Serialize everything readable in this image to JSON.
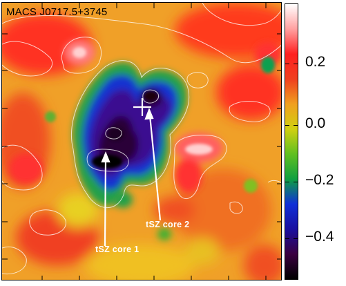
{
  "title": "MACS J0717.5+3745",
  "annotations": {
    "core1": "tSZ core 1",
    "core2": "tSZ core 2"
  },
  "colorbar": {
    "labels": [
      "0.2",
      "0.0",
      "−0.2",
      "−0.4"
    ],
    "range": [
      -0.5,
      0.4
    ],
    "colors": [
      "#000000",
      "#3a0040",
      "#1a10a0",
      "#1030d8",
      "#10a040",
      "#60c020",
      "#d0d010",
      "#f0a020",
      "#f04020",
      "#ff2020",
      "#ffa0a0",
      "#ffffff"
    ]
  }
}
